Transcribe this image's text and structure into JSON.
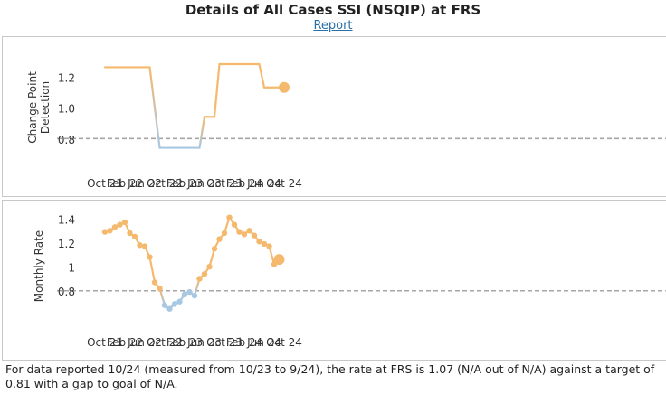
{
  "header": {
    "title": "Details of All Cases SSI (NSQIP) at FRS",
    "report_link": "Report"
  },
  "colors": {
    "above_goal": "#f5b96e",
    "below_goal": "#a8c8e2",
    "goal_line": "#a6a6a6"
  },
  "footer": {
    "text": "For data reported 10/24 (measured from 10/23 to 9/24), the rate at FRS is 1.07 (N/A out of N/A) against a target of 0.81 with a gap to goal of  N/A."
  },
  "chart_data": [
    {
      "type": "line",
      "title": "",
      "ylabel": "Change Point Detection",
      "goal": 0.81,
      "ylim": [
        0.66,
        1.36
      ],
      "yticks": [
        0.8,
        1.0,
        1.2
      ],
      "ytick_labels": [
        "0.8",
        "1.0",
        "1.2"
      ],
      "xticks": [
        "Oct 21",
        "Feb 22",
        "Jun 22",
        "Oct 22",
        "Feb 23",
        "Jun 23",
        "Oct 23",
        "Feb 24",
        "Jun 24",
        "Oct 24"
      ],
      "points": [
        {
          "x": "Oct 21",
          "y": 1.27
        },
        {
          "x": "Jul 22",
          "y": 1.27
        },
        {
          "x": "Sep 22",
          "y": 0.75
        },
        {
          "x": "May 23",
          "y": 0.75
        },
        {
          "x": "Jun 23",
          "y": 0.95
        },
        {
          "x": "Aug 23",
          "y": 0.95
        },
        {
          "x": "Sep 23",
          "y": 1.29
        },
        {
          "x": "May 24",
          "y": 1.29
        },
        {
          "x": "Jun 24",
          "y": 1.14
        },
        {
          "x": "Oct 24",
          "y": 1.14
        }
      ],
      "last_point_marker": true,
      "grid": false
    },
    {
      "type": "line",
      "title": "",
      "ylabel": "Monthly Rate",
      "goal": 0.81,
      "ylim": [
        0.56,
        1.47
      ],
      "yticks": [
        0.8,
        1.0,
        1.2,
        1.4
      ],
      "ytick_labels": [
        "0.8",
        "1",
        "1.2",
        "1.4"
      ],
      "xticks": [
        "Oct 21",
        "Feb 22",
        "Jun 22",
        "Oct 22",
        "Feb 23",
        "Jun 23",
        "Oct 23",
        "Feb 24",
        "Jun 24",
        "Oct 24"
      ],
      "points": [
        {
          "x": "Oct 21",
          "y": 1.3
        },
        {
          "x": "Nov 21",
          "y": 1.31
        },
        {
          "x": "Dec 21",
          "y": 1.34
        },
        {
          "x": "Jan 22",
          "y": 1.36
        },
        {
          "x": "Feb 22",
          "y": 1.38
        },
        {
          "x": "Mar 22",
          "y": 1.29
        },
        {
          "x": "Apr 22",
          "y": 1.26
        },
        {
          "x": "May 22",
          "y": 1.19
        },
        {
          "x": "Jun 22",
          "y": 1.18
        },
        {
          "x": "Jul 22",
          "y": 1.09
        },
        {
          "x": "Aug 22",
          "y": 0.88
        },
        {
          "x": "Sep 22",
          "y": 0.83
        },
        {
          "x": "Oct 22",
          "y": 0.69
        },
        {
          "x": "Nov 22",
          "y": 0.66
        },
        {
          "x": "Dec 22",
          "y": 0.7
        },
        {
          "x": "Jan 23",
          "y": 0.72
        },
        {
          "x": "Feb 23",
          "y": 0.78
        },
        {
          "x": "Mar 23",
          "y": 0.8
        },
        {
          "x": "Apr 23",
          "y": 0.77
        },
        {
          "x": "May 23",
          "y": 0.91
        },
        {
          "x": "Jun 23",
          "y": 0.95
        },
        {
          "x": "Jul 23",
          "y": 1.01
        },
        {
          "x": "Aug 23",
          "y": 1.16
        },
        {
          "x": "Sep 23",
          "y": 1.24
        },
        {
          "x": "Oct 23",
          "y": 1.29
        },
        {
          "x": "Nov 23",
          "y": 1.42
        },
        {
          "x": "Dec 23",
          "y": 1.36
        },
        {
          "x": "Jan 24",
          "y": 1.3
        },
        {
          "x": "Feb 24",
          "y": 1.28
        },
        {
          "x": "Mar 24",
          "y": 1.31
        },
        {
          "x": "Apr 24",
          "y": 1.27
        },
        {
          "x": "May 24",
          "y": 1.22
        },
        {
          "x": "Jun 24",
          "y": 1.2
        },
        {
          "x": "Jul 24",
          "y": 1.18
        },
        {
          "x": "Aug 24",
          "y": 1.03
        },
        {
          "x": "Sep 24",
          "y": 1.07
        }
      ],
      "last_point_marker": true,
      "grid": false
    }
  ]
}
